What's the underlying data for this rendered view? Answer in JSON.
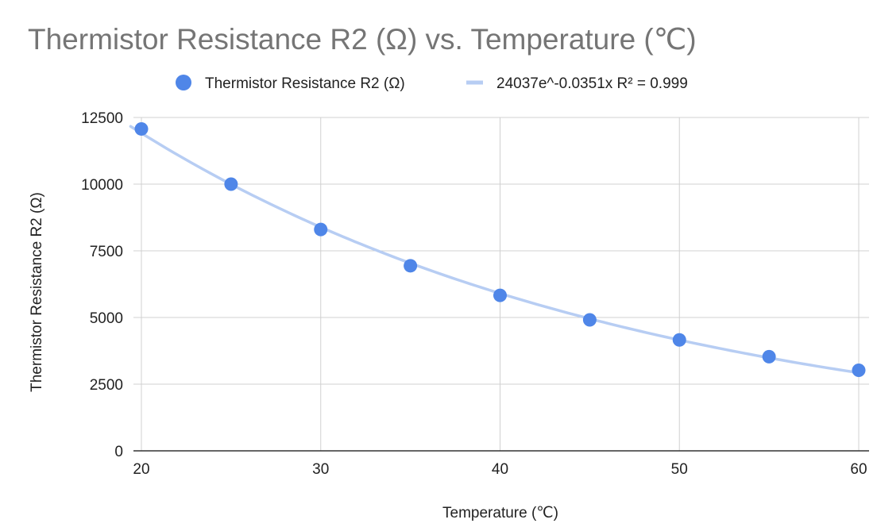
{
  "chart_data": {
    "type": "scatter",
    "title": "Thermistor Resistance R2 (Ω) vs. Temperature (℃)",
    "xlabel": "Temperature (℃)",
    "ylabel": "Thermistor Resistance R2 (Ω)",
    "xlim": [
      20,
      60
    ],
    "ylim": [
      0,
      12500
    ],
    "x_ticks": [
      20,
      30,
      40,
      50,
      60
    ],
    "y_ticks": [
      0,
      2500,
      5000,
      7500,
      10000,
      12500
    ],
    "grid": true,
    "legend_position": "top",
    "series": [
      {
        "name": "Thermistor Resistance R2 (Ω)",
        "color": "#4f86e8",
        "points": [
          {
            "x": 20,
            "y": 12070
          },
          {
            "x": 25,
            "y": 10000
          },
          {
            "x": 30,
            "y": 8300
          },
          {
            "x": 35,
            "y": 6940
          },
          {
            "x": 40,
            "y": 5830
          },
          {
            "x": 45,
            "y": 4910
          },
          {
            "x": 50,
            "y": 4160
          },
          {
            "x": 55,
            "y": 3530
          },
          {
            "x": 60,
            "y": 3020
          }
        ]
      }
    ],
    "trendline": {
      "label": "24037e^-0.0351x R² = 0.999",
      "type": "exponential",
      "a": 24037,
      "b": -0.0351,
      "color": "#b7cdf3"
    }
  }
}
